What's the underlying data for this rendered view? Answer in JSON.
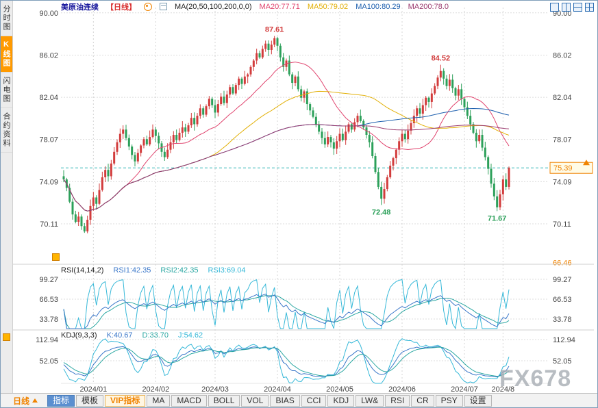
{
  "app": {
    "watermark": "FX678"
  },
  "sidebar": {
    "items": [
      {
        "label": "分时图",
        "active": false
      },
      {
        "label": "K线图",
        "active": true
      },
      {
        "label": "闪电图",
        "active": false
      },
      {
        "label": "合约资料",
        "active": false
      }
    ]
  },
  "header": {
    "title": "美原油连续",
    "period_tag": "【日线】",
    "ma_settings": "MA(20,50,100,200,0,0)",
    "ma20": "MA20:77.71",
    "ma50": "MA50:79.02",
    "ma100": "MA100:80.29",
    "ma200": "MA200:78.0"
  },
  "rsi_panel": {
    "name": "RSI(14,14,2)",
    "rsi1": "RSI1:42.35",
    "rsi2": "RSI2:42.35",
    "rsi3": "RSI3:69.04"
  },
  "kdj_panel": {
    "name": "KDJ(9,3,3)",
    "k": "K:40.67",
    "d": "D:33.70",
    "j": "J:54.62"
  },
  "bottom_bar": {
    "period": "日线",
    "tabs": [
      {
        "label": "指标",
        "active": true
      },
      {
        "label": "模板"
      },
      {
        "label": "VIP指标",
        "vip": true
      },
      {
        "label": "MA"
      },
      {
        "label": "MACD"
      },
      {
        "label": "BOLL"
      },
      {
        "label": "VOL"
      },
      {
        "label": "BIAS"
      },
      {
        "label": "CCI"
      },
      {
        "label": "KDJ"
      },
      {
        "label": "LW&"
      },
      {
        "label": "RSI"
      },
      {
        "label": "CR"
      },
      {
        "label": "PSY"
      },
      {
        "label": "设置"
      }
    ]
  },
  "chart_data": {
    "type": "candlestick",
    "symbol": "美原油连续",
    "period": "日线",
    "closes": [
      74.3,
      73.5,
      72.2,
      71.0,
      70.3,
      70.8,
      69.9,
      69.4,
      70.5,
      71.8,
      72.6,
      72.0,
      73.3,
      74.5,
      75.2,
      74.6,
      75.8,
      76.9,
      77.8,
      78.6,
      79.0,
      78.2,
      77.4,
      76.6,
      76.0,
      76.8,
      77.5,
      78.1,
      77.6,
      78.3,
      79.0,
      78.4,
      77.7,
      76.9,
      76.4,
      77.1,
      77.8,
      78.5,
      78.0,
      78.7,
      79.2,
      78.8,
      79.4,
      80.1,
      79.5,
      80.3,
      81.0,
      80.4,
      81.2,
      81.9,
      81.3,
      80.6,
      81.4,
      82.1,
      81.5,
      82.3,
      83.0,
      82.4,
      83.2,
      83.8,
      83.3,
      84.0,
      84.2,
      84.9,
      85.5,
      86.2,
      85.8,
      86.6,
      87.1,
      86.5,
      87.0,
      87.61,
      86.9,
      85.8,
      84.9,
      85.5,
      84.2,
      83.4,
      84.0,
      82.8,
      82.0,
      82.6,
      81.4,
      80.8,
      80.2,
      79.5,
      78.8,
      78.2,
      77.6,
      78.3,
      77.8,
      77.2,
      77.9,
      78.6,
      78.0,
      78.8,
      79.5,
      79.0,
      79.7,
      80.3,
      79.8,
      79.2,
      78.5,
      77.8,
      76.5,
      75.0,
      73.6,
      72.48,
      73.4,
      74.5,
      75.6,
      76.3,
      77.1,
      77.9,
      78.6,
      78.1,
      78.9,
      79.6,
      80.3,
      81.0,
      80.5,
      81.3,
      82.0,
      81.6,
      82.4,
      83.1,
      83.9,
      84.52,
      83.8,
      83.1,
      83.7,
      82.9,
      82.2,
      82.8,
      81.9,
      81.1,
      80.3,
      79.5,
      78.7,
      77.9,
      78.5,
      77.3,
      76.4,
      75.3,
      73.9,
      72.7,
      71.67,
      72.9,
      74.3,
      73.6,
      75.39
    ],
    "months": [
      {
        "label": "2024/01",
        "days": 21
      },
      {
        "label": "2024/02",
        "days": 20
      },
      {
        "label": "2024/03",
        "days": 21
      },
      {
        "label": "2024/04",
        "days": 21
      },
      {
        "label": "2024/05",
        "days": 21
      },
      {
        "label": "2024/06",
        "days": 20
      },
      {
        "label": "2024/07",
        "days": 22
      },
      {
        "label": "2024/8",
        "days": 5
      }
    ],
    "y_axis": {
      "labels": [
        "90.00",
        "86.02",
        "82.04",
        "78.07",
        "74.09",
        "70.11"
      ],
      "extra_right": "66.46",
      "min": 66.5,
      "max": 90.5
    },
    "current_price": 75.39,
    "annotations": [
      {
        "text": "87.61",
        "index": 71,
        "type": "high"
      },
      {
        "text": "84.52",
        "index": 127,
        "type": "high"
      },
      {
        "text": "72.48",
        "index": 107,
        "type": "low"
      },
      {
        "text": "71.67",
        "index": 146,
        "type": "low"
      }
    ],
    "overlays": {
      "ma_periods": [
        20,
        50,
        100,
        200
      ]
    },
    "rsi": {
      "label": "RSI(14,14,2)",
      "periods": [
        14,
        14,
        2
      ],
      "axis_labels": [
        "99.27",
        "66.53",
        "33.78"
      ]
    },
    "kdj": {
      "label": "KDJ(9,3,3)",
      "axis_labels": [
        "112.94",
        "52.05"
      ]
    },
    "colors": {
      "up": "#d23c3c",
      "down": "#2ca05a",
      "ma20": "#e0446e",
      "ma50": "#e2b007",
      "ma100": "#1d5fae",
      "ma200": "#9b3a6e",
      "rsi1": "#3a77c9",
      "rsi2": "#2aa7a2",
      "rsi3": "#35b8d8",
      "k": "#3a77c9",
      "d": "#2aa7a2",
      "j": "#35b8d8",
      "grid": "#dcdcdc",
      "month_grid": "#d4d4d4",
      "priceline": "#2fb3b3",
      "accent": "#f08300",
      "axis_text": "#444444"
    }
  }
}
